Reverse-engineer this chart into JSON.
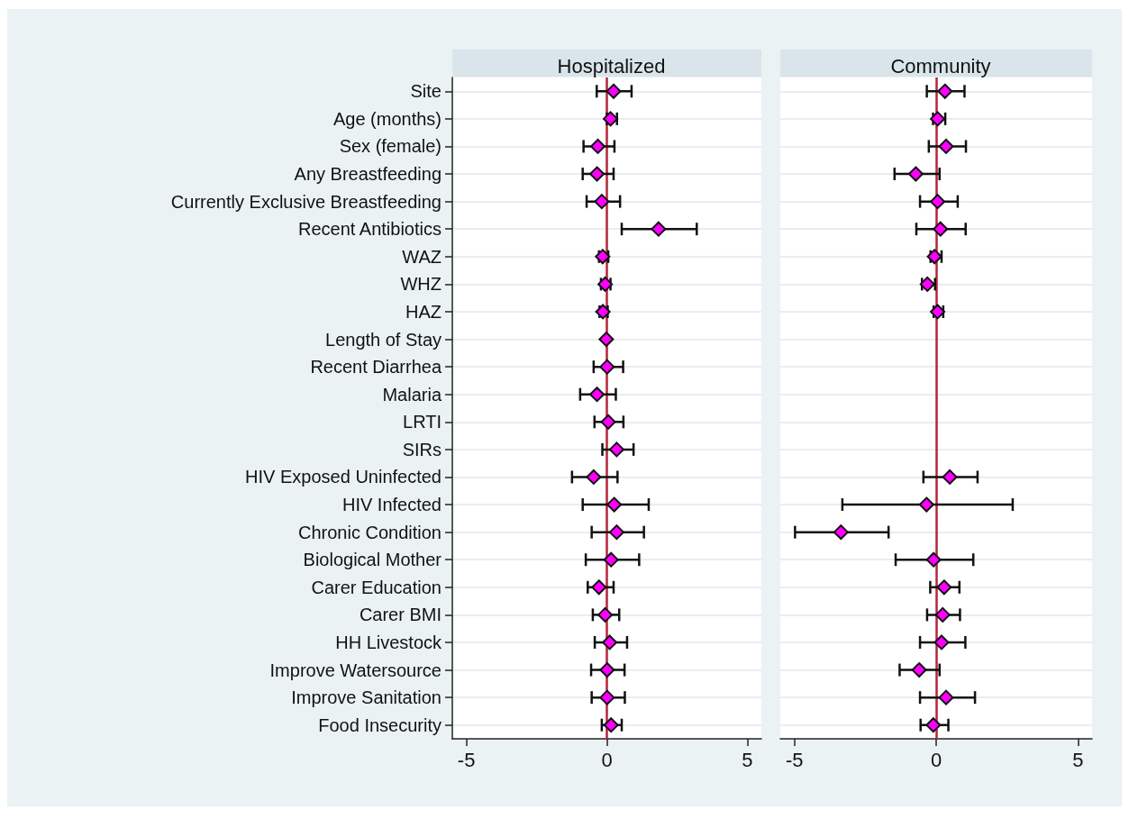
{
  "chart_data": [
    {
      "type": "scatter",
      "title": "Hospitalized",
      "orientation": "horizontal",
      "marker": "diamond",
      "grid": "y",
      "xlim": [
        -5.5,
        5.5
      ],
      "xticks": [
        -5,
        0,
        5
      ],
      "categories": [
        "Site",
        "Age (months)",
        "Sex (female)",
        "Any Breastfeeding",
        "Currently Exclusive Breastfeeding",
        "Recent Antibiotics",
        "WAZ",
        "WHZ",
        "HAZ",
        "Length of Stay",
        "Recent Diarrhea",
        "Malaria",
        "LRTI",
        "SIRs",
        "HIV Exposed Uninfected",
        "HIV Infected",
        "Chronic Condition",
        "Biological Mother",
        "Carer Education",
        "Carer BMI",
        "HH Livestock",
        "Improve Watersource",
        "Improve Sanitation",
        "Food Insecurity"
      ],
      "series": [
        {
          "color": "#ff00ff",
          "values": [
            0.24,
            0.13,
            -0.32,
            -0.35,
            -0.18,
            1.84,
            -0.15,
            -0.06,
            -0.14,
            -0.02,
            0.01,
            -0.35,
            0.05,
            0.35,
            -0.47,
            0.26,
            0.35,
            0.15,
            -0.28,
            -0.06,
            0.1,
            0.01,
            0.01,
            0.15
          ],
          "errors": [
            [
              -0.36,
              0.88
            ],
            [
              0.0,
              0.36
            ],
            [
              -0.83,
              0.27
            ],
            [
              -0.86,
              0.24
            ],
            [
              -0.72,
              0.47
            ],
            [
              0.53,
              3.2
            ],
            [
              -0.28,
              0.05
            ],
            [
              -0.21,
              0.13
            ],
            [
              -0.26,
              0.03
            ],
            null,
            [
              -0.47,
              0.58
            ],
            [
              -0.95,
              0.32
            ],
            [
              -0.44,
              0.59
            ],
            [
              -0.16,
              0.95
            ],
            [
              -1.24,
              0.38
            ],
            [
              -0.86,
              1.49
            ],
            [
              -0.54,
              1.32
            ],
            [
              -0.75,
              1.15
            ],
            [
              -0.68,
              0.24
            ],
            [
              -0.5,
              0.44
            ],
            [
              -0.43,
              0.72
            ],
            [
              -0.56,
              0.63
            ],
            [
              -0.54,
              0.64
            ],
            [
              -0.18,
              0.53
            ]
          ]
        }
      ],
      "ref_lines": [
        {
          "axis": "x",
          "value": 0,
          "color": "#b5253a"
        }
      ]
    },
    {
      "type": "scatter",
      "title": "Community",
      "orientation": "horizontal",
      "marker": "diamond",
      "grid": "y",
      "tick_labels": "x",
      "xlim": [
        -5.5,
        5.5
      ],
      "xticks": [
        -5,
        0,
        5
      ],
      "categories": [
        null,
        null,
        null,
        null,
        null,
        null,
        null,
        null,
        null,
        null,
        null,
        null,
        null,
        null,
        null,
        null,
        null,
        null,
        null,
        null,
        null,
        null,
        null,
        null
      ],
      "series": [
        {
          "color": "#ff00ff",
          "values": [
            0.31,
            0.05,
            0.35,
            -0.72,
            0.05,
            0.15,
            -0.06,
            -0.31,
            0.05,
            null,
            null,
            null,
            null,
            null,
            0.48,
            -0.34,
            -3.36,
            -0.09,
            0.28,
            0.23,
            0.19,
            -0.6,
            0.35,
            -0.1
          ],
          "errors": [
            [
              -0.33,
              1.0
            ],
            [
              -0.11,
              0.32
            ],
            [
              -0.26,
              1.05
            ],
            [
              -1.47,
              0.12
            ],
            [
              -0.57,
              0.76
            ],
            [
              -0.7,
              1.04
            ],
            [
              -0.2,
              0.19
            ],
            [
              -0.5,
              -0.04
            ],
            [
              -0.09,
              0.25
            ],
            null,
            null,
            null,
            null,
            null,
            [
              -0.45,
              1.46
            ],
            [
              -3.31,
              2.7
            ],
            [
              -4.98,
              -1.68
            ],
            [
              -1.43,
              1.31
            ],
            [
              -0.21,
              0.82
            ],
            [
              -0.32,
              0.84
            ],
            [
              -0.57,
              1.03
            ],
            [
              -1.29,
              0.12
            ],
            [
              -0.57,
              1.37
            ],
            [
              -0.55,
              0.43
            ]
          ]
        }
      ],
      "ref_lines": [
        {
          "axis": "x",
          "value": 0,
          "color": "#b5253a"
        }
      ]
    }
  ]
}
